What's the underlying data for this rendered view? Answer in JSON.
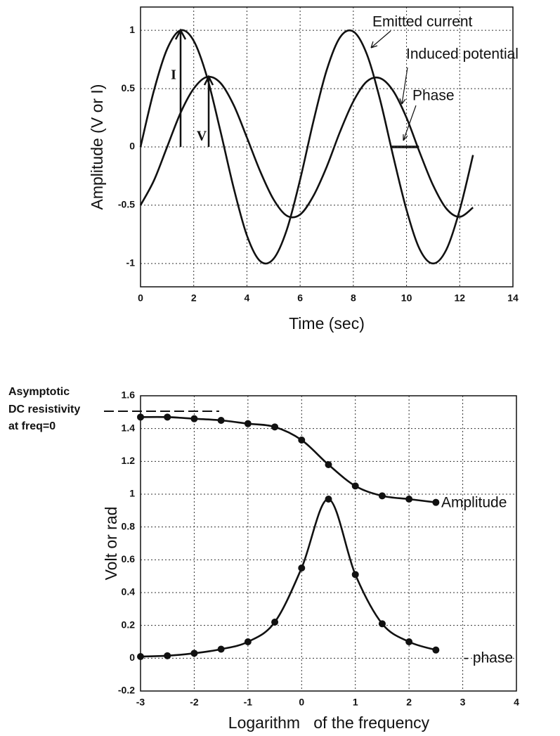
{
  "chart_data": [
    {
      "type": "line",
      "xlabel": "Time (sec)",
      "ylabel": "Amplitude (V or I)",
      "x": [
        0,
        0.5,
        1,
        1.5,
        2,
        2.5,
        3,
        3.5,
        4,
        4.5,
        5,
        5.5,
        6,
        6.5,
        7,
        7.5,
        8,
        8.5,
        9,
        9.5,
        10,
        10.5,
        11,
        11.5,
        12,
        12.5
      ],
      "series": [
        {
          "name": "Emitted current",
          "color": "#111111",
          "values": [
            0,
            0.48,
            0.84,
            1.0,
            0.91,
            0.6,
            0.14,
            -0.35,
            -0.76,
            -0.98,
            -0.96,
            -0.71,
            -0.28,
            0.22,
            0.66,
            0.94,
            0.99,
            0.8,
            0.41,
            -0.08,
            -0.54,
            -0.88,
            -1.0,
            -0.88,
            -0.54,
            -0.07
          ]
        },
        {
          "name": "Induced potential",
          "color": "#111111",
          "values": [
            -0.5,
            -0.29,
            0,
            0.29,
            0.5,
            0.6,
            0.55,
            0.36,
            0.08,
            -0.21,
            -0.45,
            -0.59,
            -0.58,
            -0.42,
            -0.17,
            0.13,
            0.39,
            0.56,
            0.59,
            0.48,
            0.25,
            -0.05,
            -0.33,
            -0.53,
            -0.6,
            -0.52
          ]
        }
      ],
      "annotations": [
        "Phase",
        "I",
        "V"
      ],
      "xlim": [
        0,
        14
      ],
      "xticks": [
        0,
        2,
        4,
        6,
        8,
        10,
        12,
        14
      ],
      "ylim": [
        -1.2,
        1.2
      ],
      "yticks": [
        -1,
        -0.5,
        0,
        0.5,
        1
      ],
      "grid": true,
      "markers": false
    },
    {
      "type": "line",
      "xlabel": "Logarithm   of the frequency",
      "ylabel": "Volt or rad",
      "x": [
        -3,
        -2.5,
        -2,
        -1.5,
        -1,
        -0.5,
        0,
        0.5,
        1,
        1.5,
        2,
        2.5
      ],
      "series": [
        {
          "name": "Amplitude",
          "color": "#111111",
          "values": [
            1.47,
            1.47,
            1.46,
            1.45,
            1.43,
            1.41,
            1.33,
            1.18,
            1.05,
            0.99,
            0.97,
            0.95
          ]
        },
        {
          "name": "- phase",
          "color": "#111111",
          "values": [
            0.01,
            0.015,
            0.03,
            0.055,
            0.1,
            0.22,
            0.55,
            0.97,
            0.51,
            0.21,
            0.1,
            0.05
          ]
        }
      ],
      "annotations": [
        "Asymptotic",
        "DC resistivity",
        "at freq=0"
      ],
      "xlim": [
        -3,
        4
      ],
      "xticks": [
        -3,
        -2,
        -1,
        0,
        1,
        2,
        3,
        4
      ],
      "ylim": [
        -0.2,
        1.6
      ],
      "yticks": [
        -0.2,
        0,
        0.2,
        0.4,
        0.6,
        0.8,
        1,
        1.2,
        1.4,
        1.6
      ],
      "grid": true,
      "markers": true
    }
  ]
}
